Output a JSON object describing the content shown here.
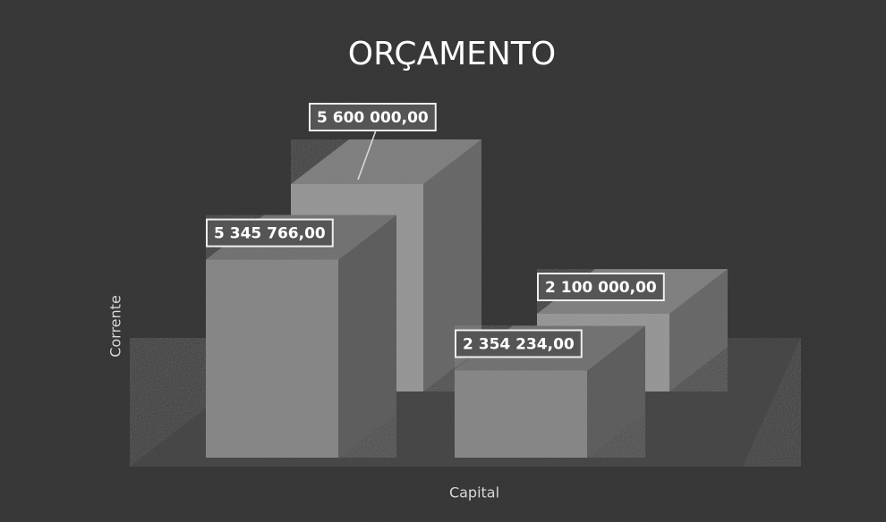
{
  "chart_data": {
    "type": "bar3d",
    "title": "ORÇAMENTO",
    "ylabel": "Corrente",
    "xlabel": "Capital",
    "categories": [
      null,
      null
    ],
    "series": [
      {
        "color": "#8c8c8c",
        "values": [
          5345766,
          2354234
        ],
        "value_labels": [
          "5 345 766,00",
          "2 354 234,00"
        ]
      },
      {
        "color": "#9c9c9c",
        "values": [
          5600000,
          2100000
        ],
        "value_labels": [
          "5 600 000,00",
          "2 100 000,00"
        ]
      }
    ]
  }
}
